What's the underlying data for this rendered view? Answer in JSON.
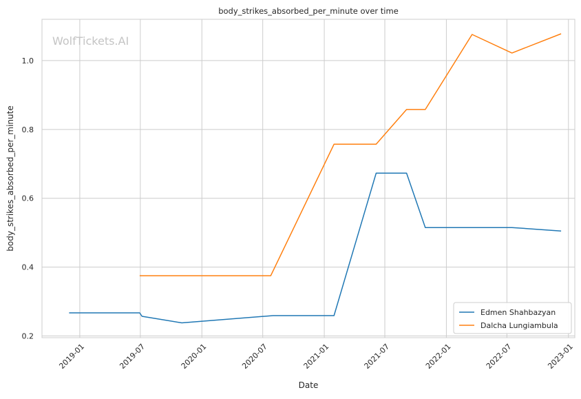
{
  "chart_data": {
    "type": "line",
    "title": "body_strikes_absorbed_per_minute over time",
    "xlabel": "Date",
    "ylabel": "body_strikes_absorbed_per_minute",
    "watermark": "WolfTickets.AI",
    "grid": true,
    "legend_position": "lower-right",
    "xlim": [
      "2018-09-10",
      "2023-01-20"
    ],
    "ylim": [
      0.195,
      1.12
    ],
    "x_ticks": [
      "2019-01-01",
      "2019-07-01",
      "2020-01-01",
      "2020-07-01",
      "2021-01-01",
      "2021-07-01",
      "2022-01-01",
      "2022-07-01",
      "2023-01-01"
    ],
    "x_tick_labels": [
      "2019-01",
      "2019-07",
      "2020-01",
      "2020-07",
      "2021-01",
      "2021-07",
      "2022-01",
      "2022-07",
      "2023-01"
    ],
    "y_ticks": [
      0.2,
      0.4,
      0.6,
      0.8,
      1.0
    ],
    "y_tick_labels": [
      "0.2",
      "0.4",
      "0.6",
      "0.8",
      "1.0"
    ],
    "series": [
      {
        "name": "Edmen Shahbazyan",
        "color": "#1f77b4",
        "x": [
          "2018-11-30",
          "2019-06-29",
          "2019-07-06",
          "2019-11-02",
          "2020-08-01",
          "2021-01-30",
          "2021-06-05",
          "2021-09-04",
          "2021-10-30",
          "2022-07-16",
          "2022-12-10"
        ],
        "y": [
          0.267,
          0.267,
          0.257,
          0.238,
          0.259,
          0.259,
          0.673,
          0.673,
          0.515,
          0.515,
          0.505
        ]
      },
      {
        "name": "Dalcha Lungiambula",
        "color": "#ff7f0e",
        "x": [
          "2019-06-29",
          "2020-07-25",
          "2021-01-30",
          "2021-06-05",
          "2021-09-04",
          "2021-10-30",
          "2022-03-19",
          "2022-07-16",
          "2022-12-10"
        ],
        "y": [
          0.375,
          0.375,
          0.757,
          0.757,
          0.858,
          0.858,
          1.076,
          1.022,
          1.078
        ]
      }
    ]
  }
}
